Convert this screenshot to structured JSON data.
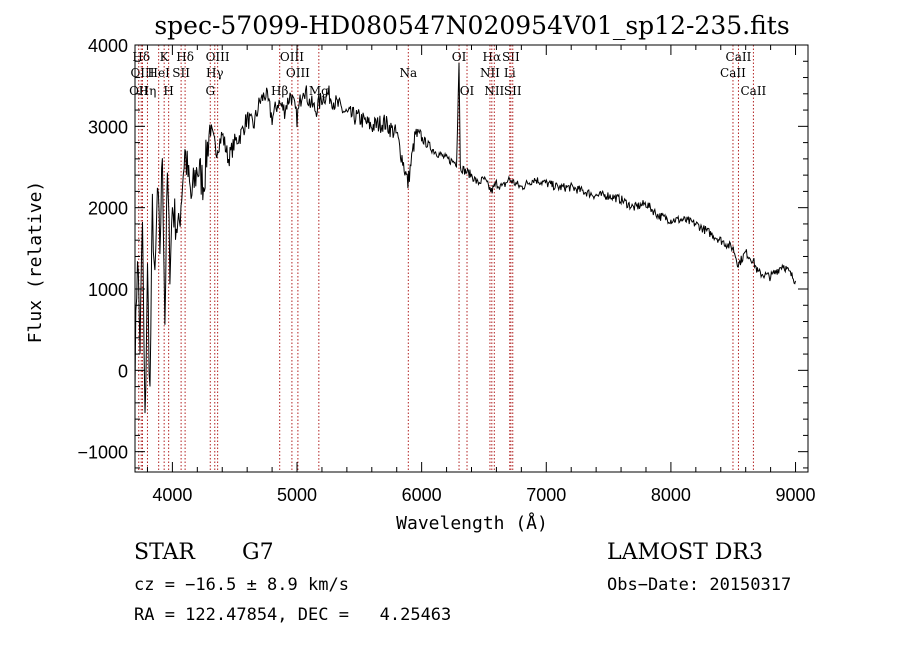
{
  "chart_data": {
    "type": "line",
    "title": "spec-57099-HD080547N020954V01_sp12-235.fits",
    "xlabel": "Wavelength (Å)",
    "ylabel": "Flux (relative)",
    "xlim": [
      3700,
      9100
    ],
    "ylim": [
      -1250,
      4000
    ],
    "xticks": [
      4000,
      5000,
      6000,
      7000,
      8000,
      9000
    ],
    "yticks": [
      -1000,
      0,
      1000,
      2000,
      3000,
      4000
    ],
    "grid": false,
    "legend": "none",
    "series": [
      {
        "name": "flux",
        "color": "#000000",
        "x": [
          3700,
          3720,
          3740,
          3760,
          3780,
          3800,
          3820,
          3840,
          3860,
          3880,
          3900,
          3920,
          3940,
          3960,
          3980,
          4000,
          4050,
          4100,
          4150,
          4200,
          4250,
          4300,
          4350,
          4400,
          4450,
          4500,
          4550,
          4600,
          4650,
          4700,
          4750,
          4800,
          4850,
          4900,
          4950,
          5000,
          5050,
          5100,
          5150,
          5200,
          5250,
          5300,
          5400,
          5500,
          5600,
          5700,
          5800,
          5890,
          5950,
          6000,
          6100,
          6200,
          6280,
          6300,
          6310,
          6350,
          6400,
          6450,
          6500,
          6560,
          6600,
          6650,
          6700,
          6750,
          6800,
          6900,
          7000,
          7100,
          7200,
          7300,
          7400,
          7500,
          7600,
          7700,
          7800,
          7900,
          8000,
          8100,
          8200,
          8300,
          8400,
          8500,
          8540,
          8600,
          8660,
          8700,
          8800,
          8900,
          9000
        ],
        "y": [
          0,
          1500,
          300,
          1800,
          -700,
          1200,
          -300,
          2000,
          1000,
          2200,
          1500,
          2700,
          600,
          2400,
          1300,
          2000,
          1700,
          2700,
          2100,
          2500,
          2300,
          3000,
          2700,
          2900,
          2600,
          2800,
          2900,
          3100,
          3000,
          3300,
          3400,
          3100,
          3300,
          3200,
          3400,
          3100,
          3500,
          3300,
          3200,
          3350,
          3400,
          3300,
          3150,
          3100,
          3000,
          3050,
          2900,
          2300,
          2900,
          2850,
          2700,
          2600,
          2550,
          3800,
          2500,
          2450,
          2400,
          2300,
          2350,
          2200,
          2300,
          2250,
          2350,
          2300,
          2250,
          2350,
          2300,
          2250,
          2250,
          2200,
          2150,
          2150,
          2100,
          2000,
          2050,
          1900,
          1850,
          1850,
          1800,
          1700,
          1600,
          1500,
          1300,
          1450,
          1350,
          1200,
          1150,
          1300,
          1100
        ]
      }
    ],
    "lines": [
      {
        "label": "Hδ",
        "x": 3750,
        "tier": 1
      },
      {
        "label": "OIII",
        "x": 3760,
        "tier": 2
      },
      {
        "label": "OII",
        "x": 3730,
        "tier": 3
      },
      {
        "label": "Hη",
        "x": 3800,
        "tier": 3
      },
      {
        "label": "K",
        "x": 3934,
        "tier": 1
      },
      {
        "label": "HeI",
        "x": 3890,
        "tier": 2
      },
      {
        "label": "H",
        "x": 3970,
        "tier": 3
      },
      {
        "label": "SII",
        "x": 4070,
        "tier": 2
      },
      {
        "label": "Hδ",
        "x": 4102,
        "tier": 1
      },
      {
        "label": "OIII",
        "x": 4363,
        "tier": 1
      },
      {
        "label": "Hγ",
        "x": 4340,
        "tier": 2
      },
      {
        "label": "G",
        "x": 4304,
        "tier": 3
      },
      {
        "label": "Hβ",
        "x": 4861,
        "tier": 3
      },
      {
        "label": "OIII",
        "x": 4959,
        "tier": 1
      },
      {
        "label": "OIII",
        "x": 5007,
        "tier": 2
      },
      {
        "label": "Mg",
        "x": 5175,
        "tier": 3
      },
      {
        "label": "Na",
        "x": 5893,
        "tier": 2
      },
      {
        "label": "OI",
        "x": 6300,
        "tier": 1
      },
      {
        "label": "OI",
        "x": 6364,
        "tier": 3
      },
      {
        "label": "Hα",
        "x": 6563,
        "tier": 1
      },
      {
        "label": "NII",
        "x": 6548,
        "tier": 2
      },
      {
        "label": "NII",
        "x": 6583,
        "tier": 3
      },
      {
        "label": "SII",
        "x": 6716,
        "tier": 1
      },
      {
        "label": "Li",
        "x": 6707,
        "tier": 2
      },
      {
        "label": "SII",
        "x": 6731,
        "tier": 3
      },
      {
        "label": "CaII",
        "x": 8542,
        "tier": 1
      },
      {
        "label": "CaII",
        "x": 8498,
        "tier": 2
      },
      {
        "label": "CaII",
        "x": 8662,
        "tier": 3
      }
    ]
  },
  "info": {
    "object_type": "STAR",
    "subclass": "G7",
    "survey": "LAMOST DR3",
    "redshift": "cz = −16.5 ± 8.9 km/s",
    "obs_date": "Obs−Date: 20150317",
    "coords": "RA = 122.47854, DEC =   4.25463"
  }
}
